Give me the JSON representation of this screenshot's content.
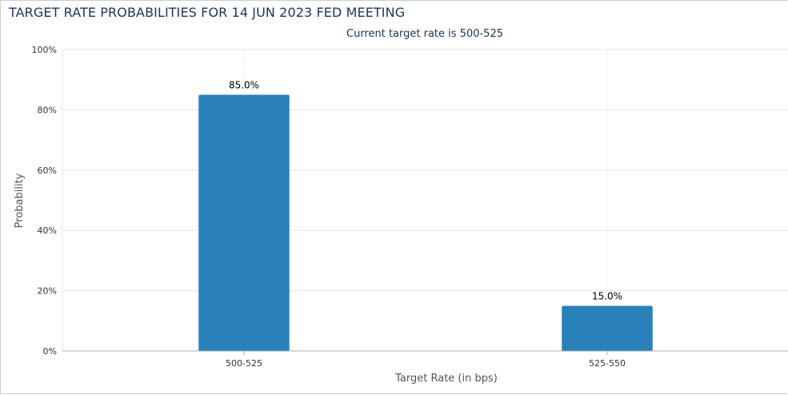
{
  "panel": {
    "title": "TARGET RATE PROBABILITIES FOR 14 JUN 2023 FED MEETING"
  },
  "chart_data": {
    "type": "bar",
    "title": "",
    "subtitle": "Current target rate is 500-525",
    "xlabel": "Target Rate (in bps)",
    "ylabel": "Probability",
    "categories": [
      "500-525",
      "525-550"
    ],
    "values": [
      85.0,
      15.0
    ],
    "data_labels": [
      "85.0%",
      "15.0%"
    ],
    "ylim": [
      0,
      100
    ],
    "yticks": [
      0,
      20,
      40,
      60,
      80,
      100
    ],
    "ytick_labels": [
      "0%",
      "20%",
      "40%",
      "60%",
      "80%",
      "100%"
    ],
    "grid": true,
    "legend": "none",
    "colors": {
      "bar": "#2a81b9",
      "grid": "#e6e6e6",
      "axis": "#b0b0b0",
      "title": "#1d3557",
      "text": "#333333"
    }
  }
}
